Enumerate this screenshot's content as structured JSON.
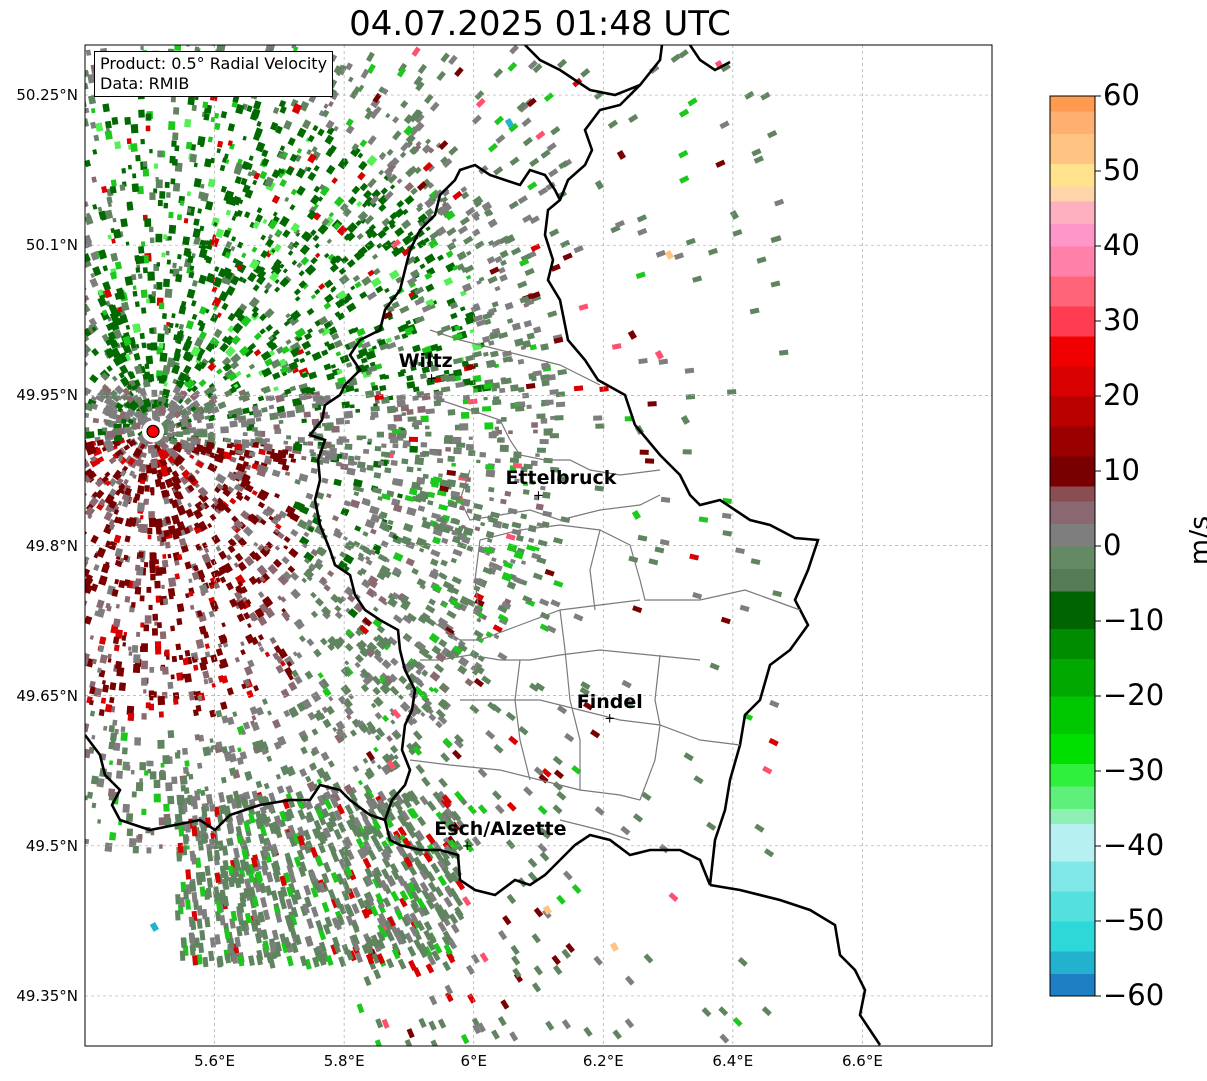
{
  "title": "04.07.2025 01:48 UTC",
  "info": {
    "product": "Product: 0.5° Radial Velocity",
    "data": "Data: RMIB"
  },
  "lat_ticks": [
    {
      "value": 50.25,
      "label": "50.25°N"
    },
    {
      "value": 50.1,
      "label": "50.1°N"
    },
    {
      "value": 49.95,
      "label": "49.95°N"
    },
    {
      "value": 49.8,
      "label": "49.8°N"
    },
    {
      "value": 49.65,
      "label": "49.65°N"
    },
    {
      "value": 49.5,
      "label": "49.5°N"
    },
    {
      "value": 49.35,
      "label": "49.35°N"
    }
  ],
  "lon_ticks": [
    {
      "value": 5.6,
      "label": "5.6°E"
    },
    {
      "value": 5.8,
      "label": "5.8°E"
    },
    {
      "value": 6.0,
      "label": "6°E"
    },
    {
      "value": 6.2,
      "label": "6.2°E"
    },
    {
      "value": 6.4,
      "label": "6.4°E"
    },
    {
      "value": 6.6,
      "label": "6.6°E"
    }
  ],
  "extent": {
    "lon_min": 5.4,
    "lon_max": 6.8,
    "lat_min": 49.3,
    "lat_max": 50.3
  },
  "cities": [
    {
      "name": "Wiltz",
      "lon": 5.935,
      "lat": 49.967
    },
    {
      "name": "Ettelbruck",
      "lon": 6.1,
      "lat": 49.85
    },
    {
      "name": "Findel",
      "lon": 6.21,
      "lat": 49.627
    },
    {
      "name": "Esch/Alzette",
      "lon": 5.99,
      "lat": 49.5
    }
  ],
  "radar": {
    "lon": 5.505,
    "lat": 49.914
  },
  "colorbar": {
    "unit": "m/s",
    "min": -60,
    "max": 60,
    "ticks": [
      {
        "value": 60,
        "label": "60"
      },
      {
        "value": 50,
        "label": "50"
      },
      {
        "value": 40,
        "label": "40"
      },
      {
        "value": 30,
        "label": "30"
      },
      {
        "value": 20,
        "label": "20"
      },
      {
        "value": 10,
        "label": "10"
      },
      {
        "value": 0,
        "label": "0"
      },
      {
        "value": -10,
        "label": "−10"
      },
      {
        "value": -20,
        "label": "−20"
      },
      {
        "value": -30,
        "label": "−30"
      },
      {
        "value": -40,
        "label": "−40"
      },
      {
        "value": -50,
        "label": "−50"
      },
      {
        "value": -60,
        "label": "−60"
      }
    ],
    "bands": [
      {
        "from": -60,
        "to": -57,
        "color": "#1f7fc4"
      },
      {
        "from": -57,
        "to": -54,
        "color": "#22b1cf"
      },
      {
        "from": -54,
        "to": -50,
        "color": "#2ed8d8"
      },
      {
        "from": -50,
        "to": -46,
        "color": "#55e0e0"
      },
      {
        "from": -46,
        "to": -42,
        "color": "#80e8e8"
      },
      {
        "from": -42,
        "to": -37,
        "color": "#b6f0f0"
      },
      {
        "from": -37,
        "to": -35,
        "color": "#8ef0b4"
      },
      {
        "from": -35,
        "to": -32,
        "color": "#5ef07a"
      },
      {
        "from": -32,
        "to": -29,
        "color": "#2ff03a"
      },
      {
        "from": -29,
        "to": -25,
        "color": "#00e000"
      },
      {
        "from": -25,
        "to": -20,
        "color": "#00c800"
      },
      {
        "from": -20,
        "to": -15,
        "color": "#00a800"
      },
      {
        "from": -15,
        "to": -11,
        "color": "#008c00"
      },
      {
        "from": -11,
        "to": -6,
        "color": "#006400"
      },
      {
        "from": -6,
        "to": -3,
        "color": "#557c55"
      },
      {
        "from": -3,
        "to": 0,
        "color": "#648a64"
      },
      {
        "from": 0,
        "to": 3,
        "color": "#7e7e7e"
      },
      {
        "from": 3,
        "to": 6,
        "color": "#896870"
      },
      {
        "from": 6,
        "to": 8,
        "color": "#8a4d52"
      },
      {
        "from": 8,
        "to": 12,
        "color": "#780000"
      },
      {
        "from": 12,
        "to": 16,
        "color": "#9a0000"
      },
      {
        "from": 16,
        "to": 20,
        "color": "#bb0000"
      },
      {
        "from": 20,
        "to": 24,
        "color": "#d80000"
      },
      {
        "from": 24,
        "to": 28,
        "color": "#f00000"
      },
      {
        "from": 28,
        "to": 32,
        "color": "#ff3c50"
      },
      {
        "from": 32,
        "to": 36,
        "color": "#ff6478"
      },
      {
        "from": 36,
        "to": 40,
        "color": "#ff80a8"
      },
      {
        "from": 40,
        "to": 43,
        "color": "#ff96c8"
      },
      {
        "from": 43,
        "to": 46,
        "color": "#ffb0c0"
      },
      {
        "from": 46,
        "to": 48,
        "color": "#ffd4a8"
      },
      {
        "from": 48,
        "to": 51,
        "color": "#ffe38c"
      },
      {
        "from": 51,
        "to": 55,
        "color": "#ffc382"
      },
      {
        "from": 55,
        "to": 58,
        "color": "#ffb070"
      },
      {
        "from": 58,
        "to": 60,
        "color": "#ff9a50"
      }
    ]
  },
  "colors": {
    "gray": "#7e7e7e",
    "gray_green": "#5f845f",
    "dark_green": "#006a00",
    "green": "#1bc81b",
    "light_green": "#55f055",
    "dark_red": "#780000",
    "red": "#d80000",
    "mauve": "#8a6a70",
    "pink": "#ff5070",
    "orange": "#ffc382",
    "cyan": "#22b1cf"
  }
}
